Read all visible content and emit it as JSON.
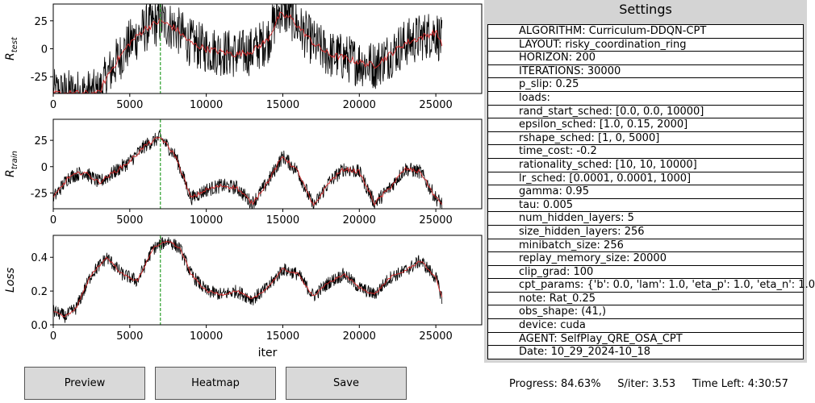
{
  "buttons": {
    "preview": "Preview",
    "heatmap": "Heatmap",
    "save": "Save"
  },
  "settings": {
    "title": "Settings",
    "rows": [
      "ALGORITHM: Curriculum-DDQN-CPT",
      "LAYOUT: risky_coordination_ring",
      "HORIZON: 200",
      "ITERATIONS: 30000",
      "p_slip: 0.25",
      "loads:",
      "rand_start_sched: [0.0, 0.0, 10000]",
      "epsilon_sched: [1.0, 0.15, 2000]",
      "rshape_sched: [1, 0, 5000]",
      "time_cost: -0.2",
      "rationality_sched: [10, 10, 10000]",
      "lr_sched: [0.0001, 0.0001, 1000]",
      "gamma: 0.95",
      "tau: 0.005",
      "num_hidden_layers: 5",
      "size_hidden_layers: 256",
      "minibatch_size: 256",
      "replay_memory_size: 20000",
      "clip_grad: 100",
      "cpt_params: {'b': 0.0, 'lam': 1.0, 'eta_p': 1.0, 'eta_n': 1.0",
      "note: Rat_0.25",
      "obs_shape: (41,)",
      "device: cuda",
      "AGENT: SelfPlay_QRE_OSA_CPT",
      "Date: 10_29_2024-10_18"
    ]
  },
  "status": {
    "progress": "Progress: 84.63%",
    "s_iter": "S/iter: 3.53",
    "time_left": "Time Left: 4:30:57"
  },
  "chart_data": [
    {
      "type": "line",
      "ylabel": "R_test",
      "xlabel": "",
      "xlim": [
        0,
        28000
      ],
      "ylim": [
        -40,
        40
      ],
      "xticks": [
        0,
        5000,
        10000,
        15000,
        20000,
        25000
      ],
      "yticks": [
        -25,
        0,
        25
      ],
      "vline_x": 7000,
      "x_end": 25400,
      "series": [
        {
          "color": "#000000",
          "noise": 22,
          "points": [
            [
              0,
              -40
            ],
            [
              3000,
              -40
            ],
            [
              3500,
              -25
            ],
            [
              4200,
              -10
            ],
            [
              5000,
              5
            ],
            [
              6000,
              18
            ],
            [
              7000,
              25
            ],
            [
              8000,
              18
            ],
            [
              9000,
              5
            ],
            [
              10000,
              0
            ],
            [
              11000,
              -3
            ],
            [
              12000,
              -5
            ],
            [
              13000,
              -2
            ],
            [
              14000,
              8
            ],
            [
              14800,
              35
            ],
            [
              15500,
              30
            ],
            [
              16000,
              20
            ],
            [
              17000,
              5
            ],
            [
              18000,
              -5
            ],
            [
              19000,
              -8
            ],
            [
              20000,
              -12
            ],
            [
              21000,
              -15
            ],
            [
              22000,
              -5
            ],
            [
              23000,
              5
            ],
            [
              24000,
              10
            ],
            [
              25000,
              15
            ],
            [
              25400,
              5
            ]
          ]
        },
        {
          "color": "#d62728",
          "noise": 3,
          "points": [
            [
              0,
              -40
            ],
            [
              3000,
              -40
            ],
            [
              3500,
              -25
            ],
            [
              4200,
              -10
            ],
            [
              5000,
              5
            ],
            [
              6000,
              18
            ],
            [
              7000,
              25
            ],
            [
              8000,
              18
            ],
            [
              9000,
              5
            ],
            [
              10000,
              0
            ],
            [
              11000,
              -3
            ],
            [
              12000,
              -5
            ],
            [
              13000,
              -2
            ],
            [
              14000,
              8
            ],
            [
              14800,
              30
            ],
            [
              15500,
              28
            ],
            [
              16000,
              20
            ],
            [
              17000,
              5
            ],
            [
              18000,
              -5
            ],
            [
              19000,
              -8
            ],
            [
              20000,
              -12
            ],
            [
              21000,
              -15
            ],
            [
              22000,
              -5
            ],
            [
              23000,
              5
            ],
            [
              24000,
              10
            ],
            [
              25000,
              15
            ],
            [
              25400,
              5
            ]
          ]
        }
      ]
    },
    {
      "type": "line",
      "ylabel": "R_train",
      "xlabel": "",
      "xlim": [
        0,
        28000
      ],
      "ylim": [
        -40,
        45
      ],
      "xticks": [
        0,
        5000,
        10000,
        15000,
        20000,
        25000
      ],
      "yticks": [
        -25,
        0,
        25
      ],
      "vline_x": 7000,
      "x_end": 25400,
      "series": [
        {
          "color": "#000000",
          "noise": 7,
          "points": [
            [
              0,
              -30
            ],
            [
              1000,
              -10
            ],
            [
              2000,
              -5
            ],
            [
              3000,
              -15
            ],
            [
              4000,
              -5
            ],
            [
              5000,
              5
            ],
            [
              6000,
              20
            ],
            [
              7000,
              28
            ],
            [
              8000,
              10
            ],
            [
              9000,
              -30
            ],
            [
              10000,
              -22
            ],
            [
              11000,
              -18
            ],
            [
              12000,
              -20
            ],
            [
              13000,
              -35
            ],
            [
              14000,
              -15
            ],
            [
              15000,
              10
            ],
            [
              16000,
              -5
            ],
            [
              17000,
              -38
            ],
            [
              18000,
              -15
            ],
            [
              19000,
              -2
            ],
            [
              20000,
              -5
            ],
            [
              21000,
              -35
            ],
            [
              22000,
              -20
            ],
            [
              23000,
              -2
            ],
            [
              24000,
              -5
            ],
            [
              25000,
              -30
            ],
            [
              25400,
              -35
            ]
          ]
        },
        {
          "color": "#d62728",
          "noise": 2,
          "points": [
            [
              0,
              -30
            ],
            [
              1000,
              -10
            ],
            [
              2000,
              -5
            ],
            [
              3000,
              -15
            ],
            [
              4000,
              -5
            ],
            [
              5000,
              5
            ],
            [
              6000,
              20
            ],
            [
              7000,
              28
            ],
            [
              8000,
              10
            ],
            [
              9000,
              -30
            ],
            [
              10000,
              -22
            ],
            [
              11000,
              -18
            ],
            [
              12000,
              -20
            ],
            [
              13000,
              -35
            ],
            [
              14000,
              -15
            ],
            [
              15000,
              10
            ],
            [
              16000,
              -5
            ],
            [
              17000,
              -38
            ],
            [
              18000,
              -15
            ],
            [
              19000,
              -2
            ],
            [
              20000,
              -5
            ],
            [
              21000,
              -35
            ],
            [
              22000,
              -20
            ],
            [
              23000,
              -2
            ],
            [
              24000,
              -5
            ],
            [
              25000,
              -30
            ],
            [
              25400,
              -35
            ]
          ]
        }
      ]
    },
    {
      "type": "line",
      "ylabel": "Loss",
      "xlabel": "iter",
      "xlim": [
        0,
        28000
      ],
      "ylim": [
        0.0,
        0.53
      ],
      "xticks": [
        0,
        5000,
        10000,
        15000,
        20000,
        25000
      ],
      "yticks": [
        0.0,
        0.2,
        0.4
      ],
      "ytick_labels": [
        "0.0",
        "0.2",
        "0.4"
      ],
      "vline_x": 7000,
      "x_end": 25400,
      "series": [
        {
          "color": "#000000",
          "noise": 0.04,
          "points": [
            [
              0,
              0.08
            ],
            [
              800,
              0.05
            ],
            [
              1500,
              0.1
            ],
            [
              2500,
              0.3
            ],
            [
              3500,
              0.4
            ],
            [
              4500,
              0.3
            ],
            [
              5500,
              0.26
            ],
            [
              6500,
              0.45
            ],
            [
              7500,
              0.5
            ],
            [
              8300,
              0.45
            ],
            [
              9000,
              0.3
            ],
            [
              10000,
              0.2
            ],
            [
              11000,
              0.18
            ],
            [
              12000,
              0.2
            ],
            [
              13000,
              0.15
            ],
            [
              14000,
              0.22
            ],
            [
              15000,
              0.33
            ],
            [
              16000,
              0.3
            ],
            [
              17000,
              0.17
            ],
            [
              18000,
              0.25
            ],
            [
              19000,
              0.3
            ],
            [
              20000,
              0.22
            ],
            [
              21000,
              0.18
            ],
            [
              22000,
              0.28
            ],
            [
              23000,
              0.32
            ],
            [
              24000,
              0.38
            ],
            [
              25000,
              0.28
            ],
            [
              25400,
              0.16
            ]
          ]
        },
        {
          "color": "#d62728",
          "noise": 0.008,
          "points": [
            [
              0,
              0.08
            ],
            [
              800,
              0.05
            ],
            [
              1500,
              0.1
            ],
            [
              2500,
              0.3
            ],
            [
              3500,
              0.4
            ],
            [
              4500,
              0.3
            ],
            [
              5500,
              0.26
            ],
            [
              6500,
              0.45
            ],
            [
              7500,
              0.5
            ],
            [
              8300,
              0.45
            ],
            [
              9000,
              0.3
            ],
            [
              10000,
              0.2
            ],
            [
              11000,
              0.18
            ],
            [
              12000,
              0.2
            ],
            [
              13000,
              0.15
            ],
            [
              14000,
              0.22
            ],
            [
              15000,
              0.33
            ],
            [
              16000,
              0.3
            ],
            [
              17000,
              0.17
            ],
            [
              18000,
              0.25
            ],
            [
              19000,
              0.3
            ],
            [
              20000,
              0.22
            ],
            [
              21000,
              0.18
            ],
            [
              22000,
              0.28
            ],
            [
              23000,
              0.32
            ],
            [
              24000,
              0.38
            ],
            [
              25000,
              0.28
            ],
            [
              25400,
              0.16
            ]
          ]
        }
      ]
    }
  ]
}
